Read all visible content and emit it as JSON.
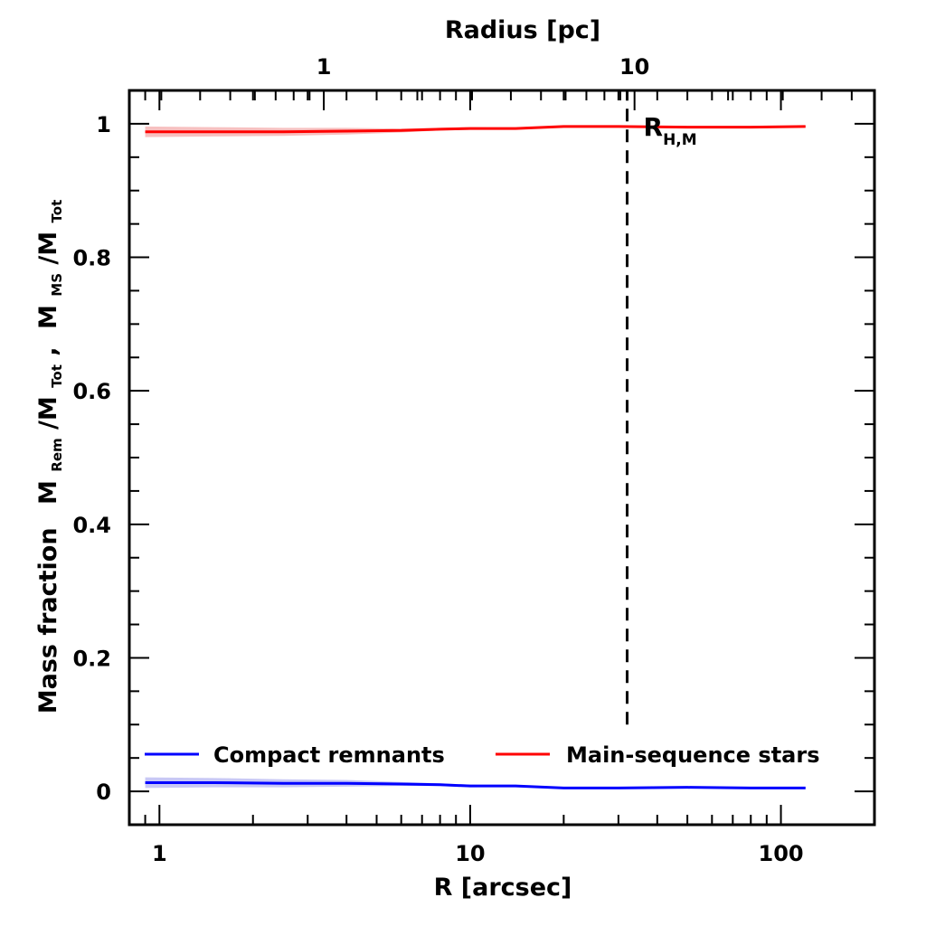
{
  "chart_data": {
    "type": "line",
    "xlabel": "R [arcsec]",
    "top_xlabel": "Radius [pc]",
    "ylabel_prefix": "Mass fraction",
    "ylabel_parts": {
      "m1": "M",
      "s1": "Rem",
      "div1": "/M",
      "s2": "Tot",
      "comma": ",",
      "m2": "M",
      "s3": "MS",
      "div2": "/M",
      "s4": "Tot"
    },
    "x_scale": "log",
    "xlim": [
      0.8,
      200
    ],
    "ylim": [
      -0.05,
      1.05
    ],
    "x_ticks": [
      {
        "value": 1,
        "label": "1"
      },
      {
        "value": 10,
        "label": "10"
      },
      {
        "value": 100,
        "label": "100"
      }
    ],
    "y_ticks": [
      {
        "value": 0,
        "label": "0"
      },
      {
        "value": 0.2,
        "label": "0.2"
      },
      {
        "value": 0.4,
        "label": "0.4"
      },
      {
        "value": 0.6,
        "label": "0.6"
      },
      {
        "value": 0.8,
        "label": "0.8"
      },
      {
        "value": 1,
        "label": "1"
      }
    ],
    "top_axis": {
      "arcsec_per_pc": 3.38,
      "ticks": [
        {
          "value": 1,
          "label": "1"
        },
        {
          "value": 10,
          "label": "10"
        }
      ]
    },
    "series": [
      {
        "name": "Compact remnants",
        "color": "#0000ff",
        "band_color": "#c8c8f5",
        "x": [
          0.9,
          1.5,
          2.5,
          4,
          6,
          8,
          10,
          14,
          20,
          30,
          50,
          80,
          120
        ],
        "y": [
          0.013,
          0.013,
          0.012,
          0.012,
          0.011,
          0.01,
          0.008,
          0.008,
          0.005,
          0.005,
          0.006,
          0.005,
          0.005
        ],
        "band": [
          0.008,
          0.007,
          0.006,
          0.005,
          0.003,
          0.002,
          0.002,
          0.001,
          0.001,
          0.001,
          0.001,
          0.001,
          0.001
        ]
      },
      {
        "name": "Main-sequence stars",
        "color": "#ff0000",
        "band_color": "#f7c0c0",
        "x": [
          0.9,
          1.5,
          2.5,
          4,
          6,
          8,
          10,
          14,
          20,
          30,
          50,
          80,
          120
        ],
        "y": [
          0.988,
          0.988,
          0.988,
          0.989,
          0.99,
          0.992,
          0.993,
          0.993,
          0.996,
          0.996,
          0.995,
          0.995,
          0.996
        ],
        "band": [
          0.008,
          0.007,
          0.006,
          0.005,
          0.003,
          0.002,
          0.002,
          0.001,
          0.001,
          0.001,
          0.001,
          0.001,
          0.001
        ]
      }
    ],
    "annotations": [
      {
        "label": "R",
        "sub": "H,M",
        "x": 32,
        "style": "dashed-vertical",
        "y_from": 0.1,
        "y_to": 1.05
      }
    ],
    "legend_placement": "bottom",
    "grid": false
  }
}
